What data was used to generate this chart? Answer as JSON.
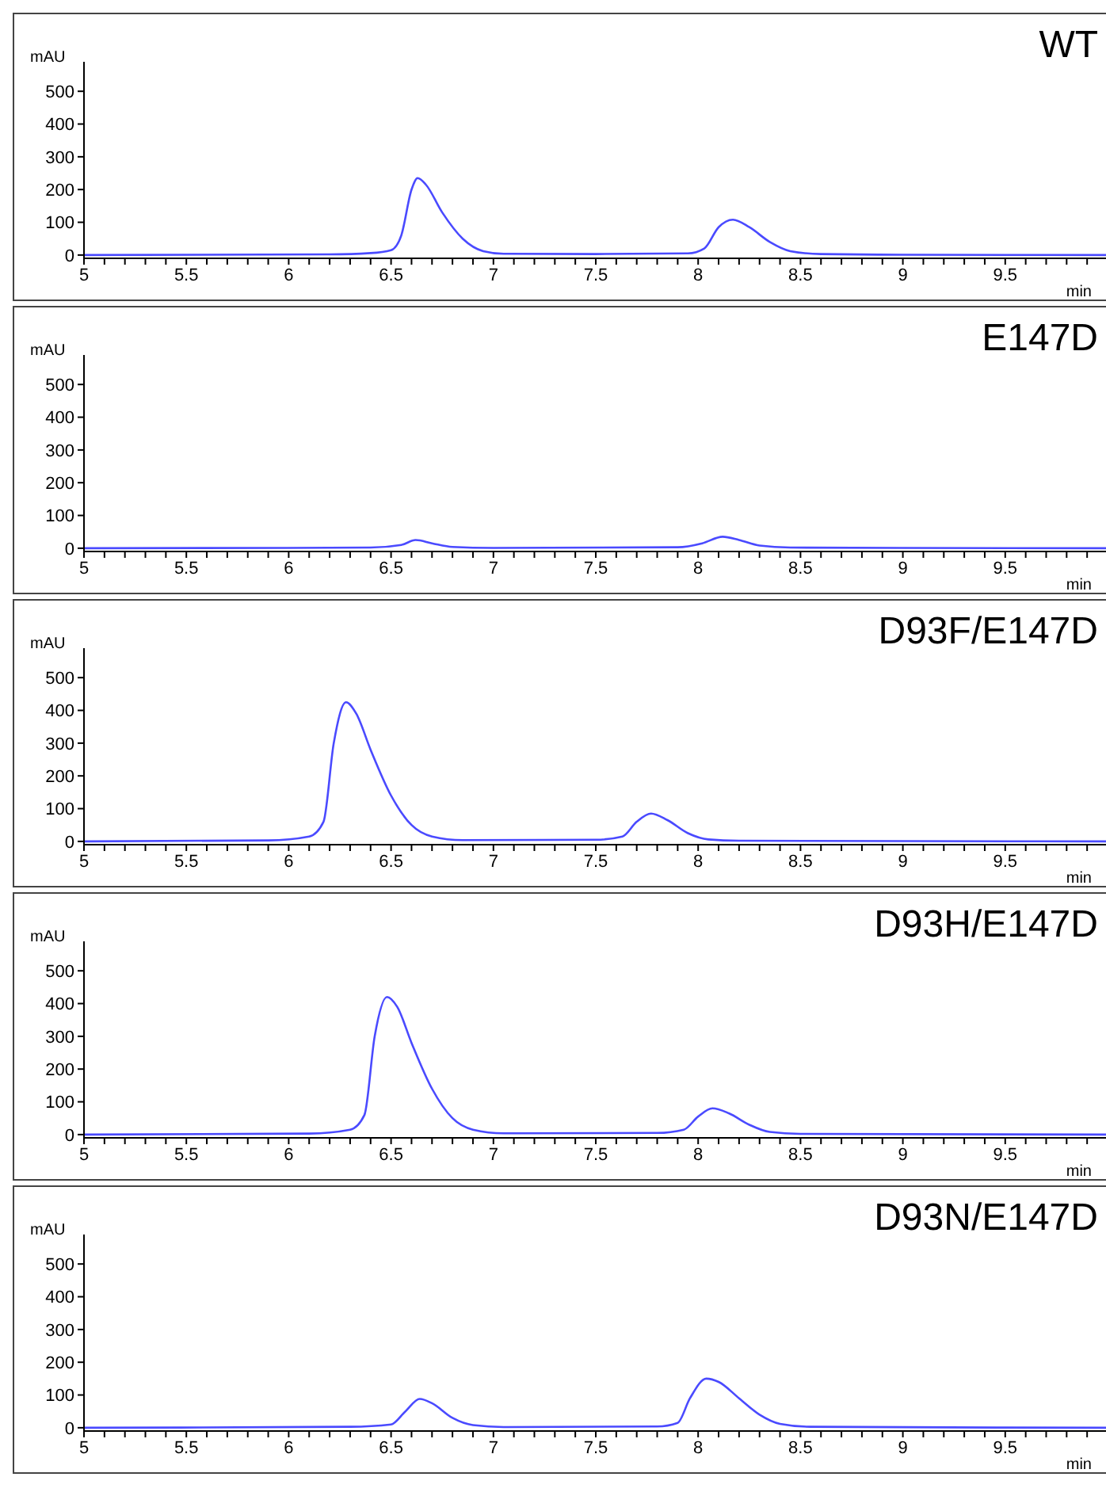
{
  "chart_data": [
    {
      "type": "line",
      "title": "WT",
      "xlabel": "min",
      "ylabel": "mAU",
      "grid": false,
      "legend": false,
      "marker": "none",
      "xlim": [
        5,
        10
      ],
      "ylim": [
        -10,
        590
      ],
      "yticks": [
        0,
        100,
        200,
        300,
        400,
        500
      ],
      "xticks": [
        5,
        {
          "value": 5.1,
          "label": null
        },
        {
          "value": 5.2,
          "label": null
        },
        {
          "value": 5.3,
          "label": null
        },
        {
          "value": 5.4,
          "label": null
        },
        5.5,
        {
          "value": 5.6,
          "label": null
        },
        {
          "value": 5.7,
          "label": null
        },
        {
          "value": 5.8,
          "label": null
        },
        {
          "value": 5.9,
          "label": null
        },
        6,
        {
          "value": 6.1,
          "label": null
        },
        {
          "value": 6.2,
          "label": null
        },
        {
          "value": 6.3,
          "label": null
        },
        {
          "value": 6.4,
          "label": null
        },
        6.5,
        {
          "value": 6.6,
          "label": null
        },
        {
          "value": 6.7,
          "label": null
        },
        {
          "value": 6.8,
          "label": null
        },
        {
          "value": 6.9,
          "label": null
        },
        7,
        {
          "value": 7.1,
          "label": null
        },
        {
          "value": 7.2,
          "label": null
        },
        {
          "value": 7.3,
          "label": null
        },
        {
          "value": 7.4,
          "label": null
        },
        7.5,
        {
          "value": 7.6,
          "label": null
        },
        {
          "value": 7.7,
          "label": null
        },
        {
          "value": 7.8,
          "label": null
        },
        {
          "value": 7.9,
          "label": null
        },
        8,
        {
          "value": 8.1,
          "label": null
        },
        {
          "value": 8.2,
          "label": null
        },
        {
          "value": 8.3,
          "label": null
        },
        {
          "value": 8.4,
          "label": null
        },
        8.5,
        {
          "value": 8.6,
          "label": null
        },
        {
          "value": 8.7,
          "label": null
        },
        {
          "value": 8.8,
          "label": null
        },
        {
          "value": 8.9,
          "label": null
        },
        9,
        {
          "value": 9.1,
          "label": null
        },
        {
          "value": 9.2,
          "label": null
        },
        {
          "value": 9.3,
          "label": null
        },
        {
          "value": 9.4,
          "label": null
        },
        9.5,
        {
          "value": 9.6,
          "label": null
        },
        {
          "value": 9.7,
          "label": null
        },
        {
          "value": 9.8,
          "label": null
        },
        {
          "value": 9.9,
          "label": null
        }
      ],
      "x": [
        5,
        6.2,
        6.4,
        6.5,
        6.55,
        6.6,
        6.63,
        6.67,
        6.75,
        6.85,
        6.95,
        7.05,
        7.5,
        7.95,
        8.03,
        8.1,
        8.17,
        8.25,
        8.35,
        8.45,
        8.6,
        9,
        10
      ],
      "series": [
        {
          "color": "#4a4aff",
          "values": [
            0,
            2,
            6,
            15,
            60,
            200,
            235,
            215,
            130,
            50,
            12,
            4,
            3,
            5,
            20,
            85,
            108,
            85,
            40,
            12,
            3,
            1,
            0
          ]
        }
      ]
    },
    {
      "type": "line",
      "title": "E147D",
      "xlabel": "min",
      "ylabel": "mAU",
      "grid": false,
      "legend": false,
      "marker": "none",
      "xlim": [
        5,
        10
      ],
      "ylim": [
        -10,
        590
      ],
      "yticks": [
        0,
        100,
        200,
        300,
        400,
        500
      ],
      "xticks": [
        5,
        {
          "value": 5.1,
          "label": null
        },
        {
          "value": 5.2,
          "label": null
        },
        {
          "value": 5.3,
          "label": null
        },
        {
          "value": 5.4,
          "label": null
        },
        5.5,
        {
          "value": 5.6,
          "label": null
        },
        {
          "value": 5.7,
          "label": null
        },
        {
          "value": 5.8,
          "label": null
        },
        {
          "value": 5.9,
          "label": null
        },
        6,
        {
          "value": 6.1,
          "label": null
        },
        {
          "value": 6.2,
          "label": null
        },
        {
          "value": 6.3,
          "label": null
        },
        {
          "value": 6.4,
          "label": null
        },
        6.5,
        {
          "value": 6.6,
          "label": null
        },
        {
          "value": 6.7,
          "label": null
        },
        {
          "value": 6.8,
          "label": null
        },
        {
          "value": 6.9,
          "label": null
        },
        7,
        {
          "value": 7.1,
          "label": null
        },
        {
          "value": 7.2,
          "label": null
        },
        {
          "value": 7.3,
          "label": null
        },
        {
          "value": 7.4,
          "label": null
        },
        7.5,
        {
          "value": 7.6,
          "label": null
        },
        {
          "value": 7.7,
          "label": null
        },
        {
          "value": 7.8,
          "label": null
        },
        {
          "value": 7.9,
          "label": null
        },
        8,
        {
          "value": 8.1,
          "label": null
        },
        {
          "value": 8.2,
          "label": null
        },
        {
          "value": 8.3,
          "label": null
        },
        {
          "value": 8.4,
          "label": null
        },
        8.5,
        {
          "value": 8.6,
          "label": null
        },
        {
          "value": 8.7,
          "label": null
        },
        {
          "value": 8.8,
          "label": null
        },
        {
          "value": 8.9,
          "label": null
        },
        9,
        {
          "value": 9.1,
          "label": null
        },
        {
          "value": 9.2,
          "label": null
        },
        {
          "value": 9.3,
          "label": null
        },
        {
          "value": 9.4,
          "label": null
        },
        9.5,
        {
          "value": 9.6,
          "label": null
        },
        {
          "value": 9.7,
          "label": null
        },
        {
          "value": 9.8,
          "label": null
        },
        {
          "value": 9.9,
          "label": null
        }
      ],
      "x": [
        5,
        6.4,
        6.55,
        6.62,
        6.7,
        6.8,
        7,
        7.9,
        8.02,
        8.12,
        8.2,
        8.3,
        8.45,
        10
      ],
      "series": [
        {
          "color": "#4a4aff",
          "values": [
            0,
            2,
            10,
            25,
            15,
            4,
            1,
            3,
            15,
            35,
            25,
            8,
            2,
            0
          ]
        }
      ]
    },
    {
      "type": "line",
      "title": "D93F/E147D",
      "xlabel": "min",
      "ylabel": "mAU",
      "grid": false,
      "legend": false,
      "marker": "none",
      "xlim": [
        5,
        10
      ],
      "ylim": [
        -10,
        590
      ],
      "yticks": [
        0,
        100,
        200,
        300,
        400,
        500
      ],
      "xticks": [
        5,
        {
          "value": 5.1,
          "label": null
        },
        {
          "value": 5.2,
          "label": null
        },
        {
          "value": 5.3,
          "label": null
        },
        {
          "value": 5.4,
          "label": null
        },
        5.5,
        {
          "value": 5.6,
          "label": null
        },
        {
          "value": 5.7,
          "label": null
        },
        {
          "value": 5.8,
          "label": null
        },
        {
          "value": 5.9,
          "label": null
        },
        6,
        {
          "value": 6.1,
          "label": null
        },
        {
          "value": 6.2,
          "label": null
        },
        {
          "value": 6.3,
          "label": null
        },
        {
          "value": 6.4,
          "label": null
        },
        6.5,
        {
          "value": 6.6,
          "label": null
        },
        {
          "value": 6.7,
          "label": null
        },
        {
          "value": 6.8,
          "label": null
        },
        {
          "value": 6.9,
          "label": null
        },
        7,
        {
          "value": 7.1,
          "label": null
        },
        {
          "value": 7.2,
          "label": null
        },
        {
          "value": 7.3,
          "label": null
        },
        {
          "value": 7.4,
          "label": null
        },
        7.5,
        {
          "value": 7.6,
          "label": null
        },
        {
          "value": 7.7,
          "label": null
        },
        {
          "value": 7.8,
          "label": null
        },
        {
          "value": 7.9,
          "label": null
        },
        8,
        {
          "value": 8.1,
          "label": null
        },
        {
          "value": 8.2,
          "label": null
        },
        {
          "value": 8.3,
          "label": null
        },
        {
          "value": 8.4,
          "label": null
        },
        8.5,
        {
          "value": 8.6,
          "label": null
        },
        {
          "value": 8.7,
          "label": null
        },
        {
          "value": 8.8,
          "label": null
        },
        {
          "value": 8.9,
          "label": null
        },
        9,
        {
          "value": 9.1,
          "label": null
        },
        {
          "value": 9.2,
          "label": null
        },
        {
          "value": 9.3,
          "label": null
        },
        {
          "value": 9.4,
          "label": null
        },
        9.5,
        {
          "value": 9.6,
          "label": null
        },
        {
          "value": 9.7,
          "label": null
        },
        {
          "value": 9.8,
          "label": null
        },
        {
          "value": 9.9,
          "label": null
        }
      ],
      "x": [
        5,
        5.9,
        6.1,
        6.17,
        6.22,
        6.28,
        6.33,
        6.4,
        6.5,
        6.6,
        6.7,
        6.85,
        7.5,
        7.63,
        7.7,
        7.77,
        7.85,
        7.95,
        8.05,
        8.2,
        10
      ],
      "series": [
        {
          "color": "#4a4aff",
          "values": [
            0,
            3,
            15,
            60,
            300,
            425,
            390,
            280,
            140,
            50,
            15,
            4,
            5,
            15,
            60,
            85,
            65,
            25,
            6,
            2,
            0
          ]
        }
      ]
    },
    {
      "type": "line",
      "title": "D93H/E147D",
      "xlabel": "min",
      "ylabel": "mAU",
      "grid": false,
      "legend": false,
      "marker": "none",
      "xlim": [
        5,
        10
      ],
      "ylim": [
        -10,
        590
      ],
      "yticks": [
        0,
        100,
        200,
        300,
        400,
        500
      ],
      "xticks": [
        5,
        {
          "value": 5.1,
          "label": null
        },
        {
          "value": 5.2,
          "label": null
        },
        {
          "value": 5.3,
          "label": null
        },
        {
          "value": 5.4,
          "label": null
        },
        5.5,
        {
          "value": 5.6,
          "label": null
        },
        {
          "value": 5.7,
          "label": null
        },
        {
          "value": 5.8,
          "label": null
        },
        {
          "value": 5.9,
          "label": null
        },
        6,
        {
          "value": 6.1,
          "label": null
        },
        {
          "value": 6.2,
          "label": null
        },
        {
          "value": 6.3,
          "label": null
        },
        {
          "value": 6.4,
          "label": null
        },
        6.5,
        {
          "value": 6.6,
          "label": null
        },
        {
          "value": 6.7,
          "label": null
        },
        {
          "value": 6.8,
          "label": null
        },
        {
          "value": 6.9,
          "label": null
        },
        7,
        {
          "value": 7.1,
          "label": null
        },
        {
          "value": 7.2,
          "label": null
        },
        {
          "value": 7.3,
          "label": null
        },
        {
          "value": 7.4,
          "label": null
        },
        7.5,
        {
          "value": 7.6,
          "label": null
        },
        {
          "value": 7.7,
          "label": null
        },
        {
          "value": 7.8,
          "label": null
        },
        {
          "value": 7.9,
          "label": null
        },
        8,
        {
          "value": 8.1,
          "label": null
        },
        {
          "value": 8.2,
          "label": null
        },
        {
          "value": 8.3,
          "label": null
        },
        {
          "value": 8.4,
          "label": null
        },
        8.5,
        {
          "value": 8.6,
          "label": null
        },
        {
          "value": 8.7,
          "label": null
        },
        {
          "value": 8.8,
          "label": null
        },
        {
          "value": 8.9,
          "label": null
        },
        9,
        {
          "value": 9.1,
          "label": null
        },
        {
          "value": 9.2,
          "label": null
        },
        {
          "value": 9.3,
          "label": null
        },
        {
          "value": 9.4,
          "label": null
        },
        9.5,
        {
          "value": 9.6,
          "label": null
        },
        {
          "value": 9.7,
          "label": null
        },
        {
          "value": 9.8,
          "label": null
        },
        {
          "value": 9.9,
          "label": null
        }
      ],
      "x": [
        5,
        6.1,
        6.3,
        6.37,
        6.42,
        6.48,
        6.53,
        6.6,
        6.7,
        6.8,
        6.9,
        7.05,
        7.8,
        7.93,
        8,
        8.07,
        8.15,
        8.25,
        8.35,
        8.5,
        10
      ],
      "series": [
        {
          "color": "#4a4aff",
          "values": [
            0,
            3,
            15,
            60,
            300,
            420,
            390,
            280,
            140,
            50,
            15,
            4,
            5,
            15,
            55,
            80,
            65,
            30,
            8,
            2,
            0
          ]
        }
      ]
    },
    {
      "type": "line",
      "title": "D93N/E147D",
      "xlabel": "min",
      "ylabel": "mAU",
      "grid": false,
      "legend": false,
      "marker": "none",
      "xlim": [
        5,
        10
      ],
      "ylim": [
        -10,
        590
      ],
      "yticks": [
        0,
        100,
        200,
        300,
        400,
        500
      ],
      "xticks": [
        5,
        {
          "value": 5.1,
          "label": null
        },
        {
          "value": 5.2,
          "label": null
        },
        {
          "value": 5.3,
          "label": null
        },
        {
          "value": 5.4,
          "label": null
        },
        5.5,
        {
          "value": 5.6,
          "label": null
        },
        {
          "value": 5.7,
          "label": null
        },
        {
          "value": 5.8,
          "label": null
        },
        {
          "value": 5.9,
          "label": null
        },
        6,
        {
          "value": 6.1,
          "label": null
        },
        {
          "value": 6.2,
          "label": null
        },
        {
          "value": 6.3,
          "label": null
        },
        {
          "value": 6.4,
          "label": null
        },
        6.5,
        {
          "value": 6.6,
          "label": null
        },
        {
          "value": 6.7,
          "label": null
        },
        {
          "value": 6.8,
          "label": null
        },
        {
          "value": 6.9,
          "label": null
        },
        7,
        {
          "value": 7.1,
          "label": null
        },
        {
          "value": 7.2,
          "label": null
        },
        {
          "value": 7.3,
          "label": null
        },
        {
          "value": 7.4,
          "label": null
        },
        7.5,
        {
          "value": 7.6,
          "label": null
        },
        {
          "value": 7.7,
          "label": null
        },
        {
          "value": 7.8,
          "label": null
        },
        {
          "value": 7.9,
          "label": null
        },
        8,
        {
          "value": 8.1,
          "label": null
        },
        {
          "value": 8.2,
          "label": null
        },
        {
          "value": 8.3,
          "label": null
        },
        {
          "value": 8.4,
          "label": null
        },
        8.5,
        {
          "value": 8.6,
          "label": null
        },
        {
          "value": 8.7,
          "label": null
        },
        {
          "value": 8.8,
          "label": null
        },
        {
          "value": 8.9,
          "label": null
        },
        9,
        {
          "value": 9.1,
          "label": null
        },
        {
          "value": 9.2,
          "label": null
        },
        {
          "value": 9.3,
          "label": null
        },
        {
          "value": 9.4,
          "label": null
        },
        9.5,
        {
          "value": 9.6,
          "label": null
        },
        {
          "value": 9.7,
          "label": null
        },
        {
          "value": 9.8,
          "label": null
        },
        {
          "value": 9.9,
          "label": null
        }
      ],
      "x": [
        5,
        6.3,
        6.5,
        6.57,
        6.64,
        6.7,
        6.8,
        6.9,
        7.05,
        7.8,
        7.9,
        7.96,
        8.04,
        8.1,
        8.2,
        8.3,
        8.4,
        8.55,
        10
      ],
      "series": [
        {
          "color": "#4a4aff",
          "values": [
            0,
            3,
            10,
            50,
            88,
            75,
            30,
            8,
            2,
            4,
            15,
            90,
            150,
            140,
            90,
            40,
            12,
            3,
            0
          ]
        }
      ]
    }
  ]
}
